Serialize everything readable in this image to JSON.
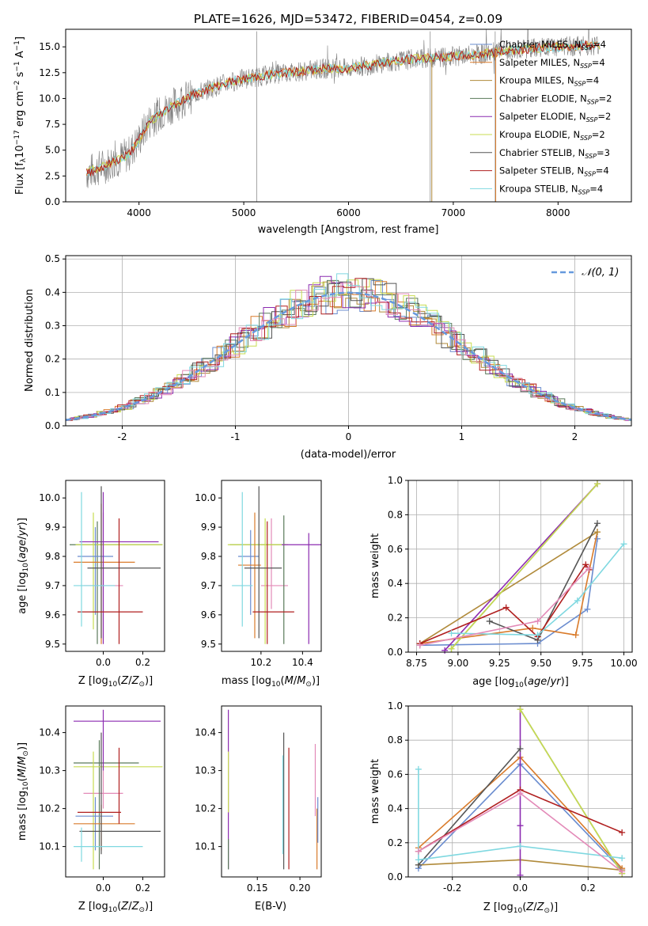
{
  "page": {
    "title": "PLATE=1626, MJD=53472, FIBERID=0454, z=0.09"
  },
  "colors": {
    "chab_miles": "#6a8ccf",
    "salp_miles": "#d97b2b",
    "krou_miles": "#b08a3a",
    "chab_elodie": "#5a7a5a",
    "salp_elodie": "#8c2bb0",
    "krou_elodie": "#c8dc50",
    "chab_stelib": "#555555",
    "salp_stelib": "#b01f1f",
    "krou_stelib": "#7fd8e0",
    "pink": "#e38ab8",
    "green": "#7ab24a",
    "spectrum": "#808080",
    "gauss": "#6699dd"
  },
  "chart_data": [
    {
      "id": "spectrum",
      "type": "line",
      "title": "PLATE=1626, MJD=53472, FIBERID=0454, z=0.09",
      "xlabel": "wavelength [Angstrom, rest frame]",
      "ylabel": "Flux [f",
      "xlim": [
        3300,
        8700
      ],
      "ylim": [
        0,
        16.7
      ],
      "xticks": [
        4000,
        5000,
        6000,
        7000,
        8000
      ],
      "yticks": [
        0.0,
        2.5,
        5.0,
        7.5,
        10.0,
        12.5,
        15.0
      ],
      "legend": "right",
      "series": [
        {
          "name": "Chabrier MILES, N",
          "sub": "SSP",
          "suffix": "=4",
          "color": "#6a8ccf"
        },
        {
          "name": "Salpeter MILES, N",
          "sub": "SSP",
          "suffix": "=4",
          "color": "#d97b2b"
        },
        {
          "name": "Kroupa MILES, N",
          "sub": "SSP",
          "suffix": "=4",
          "color": "#b08a3a"
        },
        {
          "name": "Chabrier ELODIE, N",
          "sub": "SSP",
          "suffix": "=2",
          "color": "#5a7a5a"
        },
        {
          "name": "Salpeter ELODIE, N",
          "sub": "SSP",
          "suffix": "=2",
          "color": "#8c2bb0"
        },
        {
          "name": "Kroupa ELODIE, N",
          "sub": "SSP",
          "suffix": "=2",
          "color": "#c8dc50"
        },
        {
          "name": "Chabrier STELIB, N",
          "sub": "SSP",
          "suffix": "=3",
          "color": "#555555"
        },
        {
          "name": "Salpeter STELIB, N",
          "sub": "SSP",
          "suffix": "=4",
          "color": "#b01f1f"
        },
        {
          "name": "Kroupa STELIB, N",
          "sub": "SSP",
          "suffix": "=4",
          "color": "#7fd8e0"
        }
      ],
      "continuum": {
        "x": [
          3500,
          3700,
          3900,
          4000,
          4100,
          4300,
          4500,
          4800,
          5000,
          5200,
          5500,
          5800,
          6000,
          6300,
          6600,
          6900,
          7200,
          7500,
          7800,
          8000,
          8200,
          8400
        ],
        "y": [
          2.8,
          3.6,
          4.6,
          6.0,
          7.8,
          9.2,
          10.3,
          11.4,
          11.9,
          12.2,
          12.6,
          12.9,
          12.9,
          13.4,
          13.8,
          14.0,
          14.2,
          14.6,
          14.9,
          15.0,
          15.1,
          15.2
        ]
      }
    },
    {
      "id": "residuals",
      "type": "line",
      "xlabel": "(data-model)/error",
      "ylabel": "Normed distribution",
      "xlim": [
        -2.5,
        2.5
      ],
      "ylim": [
        0,
        0.51
      ],
      "xticks": [
        -2,
        -1,
        0,
        1,
        2
      ],
      "yticks": [
        0.0,
        0.1,
        0.2,
        0.3,
        0.4,
        0.5
      ],
      "legend": "top-right",
      "gauss_label": "𝒩(0, 1)"
    },
    {
      "id": "age_vs_Z",
      "type": "scatter",
      "xlabel": "Z [log10(Z/Z⊙)]",
      "ylabel": "age  [log10(age/yr)]",
      "xlim": [
        -0.19,
        0.31
      ],
      "ylim": [
        9.475,
        10.06
      ],
      "xticks": [
        0.0,
        0.2
      ],
      "yticks": [
        9.5,
        9.6,
        9.7,
        9.8,
        9.9,
        10.0
      ]
    },
    {
      "id": "age_vs_mass",
      "type": "scatter",
      "xlabel": "mass [log10(M/M⊙)]",
      "xlim": [
        10.01,
        10.49
      ],
      "ylim": [
        9.475,
        10.06
      ],
      "xticks": [
        10.2,
        10.4
      ],
      "yticks": [
        9.5,
        9.6,
        9.7,
        9.8,
        9.9,
        10.0
      ]
    },
    {
      "id": "mw_vs_age",
      "type": "line",
      "xlabel": "age  [log10(age/yr)]",
      "ylabel": "mass weight",
      "xlim": [
        8.7,
        10.05
      ],
      "ylim": [
        0,
        1.0
      ],
      "xticks": [
        8.75,
        9.0,
        9.25,
        9.5,
        9.75,
        10.0
      ],
      "yticks": [
        0.0,
        0.2,
        0.4,
        0.6,
        0.8,
        1.0
      ],
      "series": [
        {
          "color": "#6a8ccf",
          "x": [
            8.77,
            9.48,
            9.78,
            9.84
          ],
          "y": [
            0.04,
            0.05,
            0.25,
            0.66
          ]
        },
        {
          "color": "#d97b2b",
          "x": [
            8.77,
            9.45,
            9.71,
            9.84
          ],
          "y": [
            0.05,
            0.14,
            0.1,
            0.7
          ]
        },
        {
          "color": "#b08a3a",
          "x": [
            8.77,
            9.84
          ],
          "y": [
            0.05,
            0.7
          ]
        },
        {
          "color": "#5a7a5a",
          "x": [
            8.96,
            9.84
          ],
          "y": [
            0.02,
            0.98
          ]
        },
        {
          "color": "#8c2bb0",
          "x": [
            8.92,
            9.84
          ],
          "y": [
            0.01,
            0.98
          ]
        },
        {
          "color": "#c8dc50",
          "x": [
            8.96,
            9.84
          ],
          "y": [
            0.02,
            0.98
          ]
        },
        {
          "color": "#555555",
          "x": [
            9.19,
            9.48,
            9.84
          ],
          "y": [
            0.18,
            0.07,
            0.75
          ]
        },
        {
          "color": "#b01f1f",
          "x": [
            8.77,
            9.29,
            9.48,
            9.77,
            9.79
          ],
          "y": [
            0.05,
            0.26,
            0.09,
            0.51,
            0.48
          ]
        },
        {
          "color": "#7fd8e0",
          "x": [
            8.96,
            9.48,
            9.72,
            10.0
          ],
          "y": [
            0.11,
            0.1,
            0.3,
            0.63
          ]
        },
        {
          "color": "#e38ab8",
          "x": [
            8.77,
            9.48,
            9.79
          ],
          "y": [
            0.04,
            0.18,
            0.49
          ]
        }
      ]
    },
    {
      "id": "mass_vs_Z",
      "type": "scatter",
      "xlabel": "Z [log10(Z/Z⊙)]",
      "ylabel": "mass [log10(M/M⊙)]",
      "xlim": [
        -0.19,
        0.31
      ],
      "ylim": [
        10.02,
        10.47
      ],
      "xticks": [
        0.0,
        0.2
      ],
      "yticks": [
        10.1,
        10.2,
        10.3,
        10.4
      ]
    },
    {
      "id": "mass_vs_EBV",
      "type": "scatter",
      "xlabel": "E(B-V)",
      "xlim": [
        0.108,
        0.225
      ],
      "ylim": [
        10.02,
        10.47
      ],
      "xticks": [
        0.15,
        0.2
      ],
      "yticks": [
        10.1,
        10.2,
        10.3,
        10.4
      ]
    },
    {
      "id": "mw_vs_Z",
      "type": "line",
      "xlabel": "Z [log10(Z/Z⊙)]",
      "ylabel": "mass weight",
      "xlim": [
        -0.33,
        0.33
      ],
      "ylim": [
        0,
        1.0
      ],
      "xticks": [
        -0.2,
        0.0,
        0.2
      ],
      "yticks": [
        0.0,
        0.2,
        0.4,
        0.6,
        0.8,
        1.0
      ],
      "series": [
        {
          "color": "#6a8ccf",
          "x": [
            -0.3,
            0.0,
            0.3
          ],
          "y": [
            0.05,
            0.66,
            0.04
          ]
        },
        {
          "color": "#d97b2b",
          "x": [
            -0.3,
            0.0,
            0.3
          ],
          "y": [
            0.17,
            0.7,
            0.05
          ]
        },
        {
          "color": "#b08a3a",
          "x": [
            -0.3,
            0.0,
            0.3
          ],
          "y": [
            0.07,
            0.1,
            0.04
          ]
        },
        {
          "color": "#5a7a5a",
          "x": [
            0.0,
            0.3
          ],
          "y": [
            0.98,
            0.02
          ]
        },
        {
          "color": "#8c2bb0",
          "x": [
            0.0,
            0.0,
            0.0
          ],
          "y": [
            0.01,
            0.3,
            0.98
          ]
        },
        {
          "color": "#c8dc50",
          "x": [
            0.0,
            0.3
          ],
          "y": [
            0.98,
            0.02
          ]
        },
        {
          "color": "#555555",
          "x": [
            -0.3,
            0.0
          ],
          "y": [
            0.07,
            0.75
          ]
        },
        {
          "color": "#b01f1f",
          "x": [
            -0.3,
            0.0,
            0.3
          ],
          "y": [
            0.15,
            0.51,
            0.26
          ]
        },
        {
          "color": "#7fd8e0",
          "x": [
            -0.3,
            -0.3,
            0.0,
            0.3
          ],
          "y": [
            0.63,
            0.1,
            0.18,
            0.11
          ]
        },
        {
          "color": "#e38ab8",
          "x": [
            -0.3,
            0.0,
            0.3
          ],
          "y": [
            0.15,
            0.49,
            0.03
          ]
        }
      ]
    }
  ]
}
